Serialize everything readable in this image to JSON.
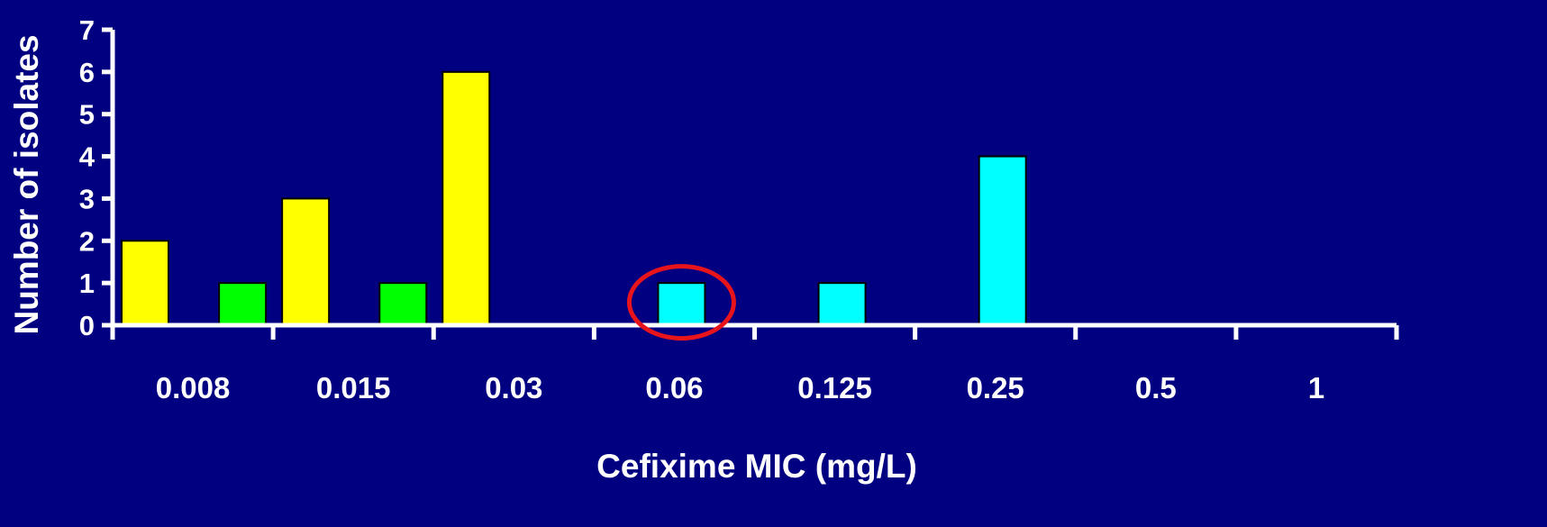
{
  "colors": {
    "background": "#000080",
    "axis": "#ffffff",
    "bar_outline": "#000000",
    "highlight_circle": "#e8141c"
  },
  "chart_data": {
    "type": "bar",
    "title": "",
    "xlabel": "Cefixime MIC (mg/L)",
    "ylabel": "Number of isolates",
    "ylim": [
      0,
      7
    ],
    "yticks": [
      0,
      1,
      2,
      3,
      4,
      5,
      6,
      7
    ],
    "categories": [
      "0.008",
      "0.015",
      "0.03",
      "0.06",
      "0.125",
      "0.25",
      "0.5",
      "1"
    ],
    "grid": false,
    "legend": "none",
    "series": [
      {
        "color": "#ffff00",
        "values": [
          2,
          3,
          6,
          0,
          0,
          0,
          0,
          0
        ]
      },
      {
        "color": "#00ff00",
        "values": [
          1,
          1,
          0,
          0,
          0,
          0,
          0,
          0
        ]
      },
      {
        "color": "#00ffff",
        "values": [
          0,
          0,
          0,
          1,
          1,
          4,
          0,
          0
        ]
      }
    ],
    "highlight": {
      "shape": "circle",
      "category": "0.06",
      "value": 1
    }
  }
}
